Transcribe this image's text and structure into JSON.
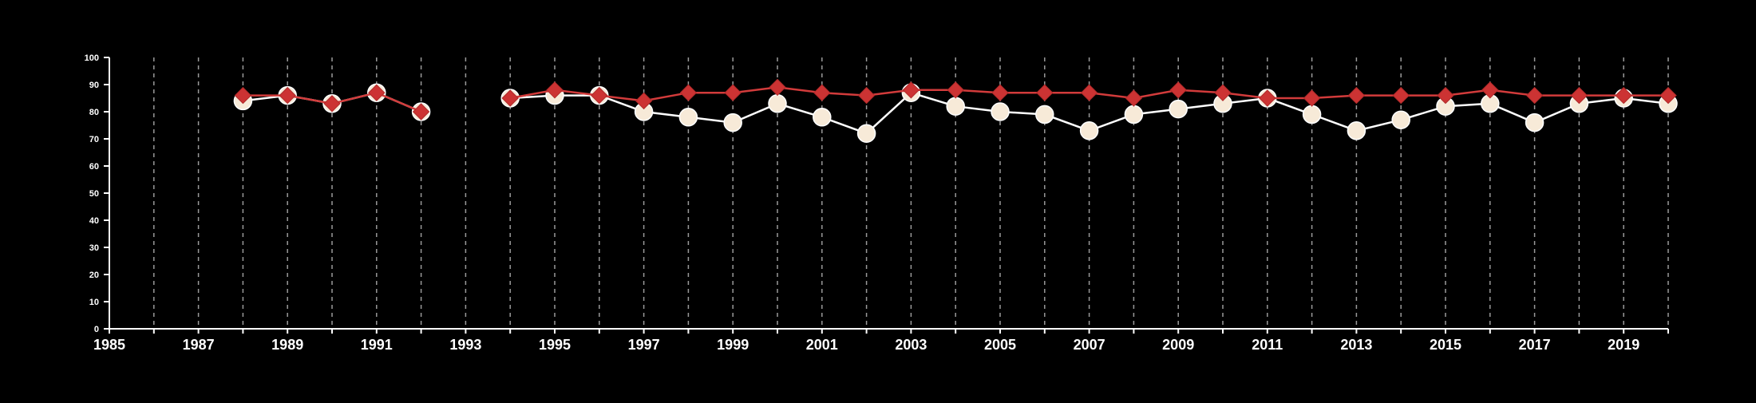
{
  "chart_data": {
    "type": "line",
    "title": "",
    "xlabel": "",
    "ylabel": "",
    "xlim": [
      1985,
      2020
    ],
    "ylim": [
      0,
      100
    ],
    "x_ticks": [
      1985,
      1987,
      1989,
      1991,
      1993,
      1995,
      1997,
      1999,
      2001,
      2003,
      2005,
      2007,
      2009,
      2011,
      2013,
      2015,
      2017,
      2019
    ],
    "y_ticks": [
      0,
      10,
      20,
      30,
      40,
      50,
      60,
      70,
      80,
      90,
      100
    ],
    "grid": "vertical dashed lines at every year",
    "legend": "none",
    "background": "#000000",
    "series": [
      {
        "marker": "circle",
        "color": "#ffffff",
        "marker_fill": "#f7ead8",
        "points": [
          [
            1988,
            84
          ],
          [
            1989,
            86
          ],
          [
            1990,
            83
          ],
          [
            1991,
            87
          ],
          [
            1992,
            80
          ],
          [
            1994,
            85
          ],
          [
            1995,
            86
          ],
          [
            1996,
            86
          ],
          [
            1997,
            80
          ],
          [
            1998,
            78
          ],
          [
            1999,
            76
          ],
          [
            2000,
            83
          ],
          [
            2001,
            78
          ],
          [
            2002,
            72
          ],
          [
            2003,
            87
          ],
          [
            2004,
            82
          ],
          [
            2005,
            80
          ],
          [
            2006,
            79
          ],
          [
            2007,
            73
          ],
          [
            2008,
            79
          ],
          [
            2009,
            81
          ],
          [
            2010,
            83
          ],
          [
            2011,
            85
          ],
          [
            2012,
            79
          ],
          [
            2013,
            73
          ],
          [
            2014,
            77
          ],
          [
            2015,
            82
          ],
          [
            2016,
            83
          ],
          [
            2017,
            76
          ],
          [
            2018,
            83
          ],
          [
            2019,
            85
          ],
          [
            2020,
            83
          ]
        ]
      },
      {
        "marker": "diamond",
        "color": "#d23b3b",
        "marker_fill": "#cc3333",
        "points": [
          [
            1988,
            86
          ],
          [
            1989,
            86
          ],
          [
            1990,
            83
          ],
          [
            1991,
            87
          ],
          [
            1992,
            80
          ],
          [
            1994,
            85
          ],
          [
            1995,
            88
          ],
          [
            1996,
            86
          ],
          [
            1997,
            84
          ],
          [
            1998,
            87
          ],
          [
            1999,
            87
          ],
          [
            2000,
            89
          ],
          [
            2001,
            87
          ],
          [
            2002,
            86
          ],
          [
            2003,
            88
          ],
          [
            2004,
            88
          ],
          [
            2005,
            87
          ],
          [
            2006,
            87
          ],
          [
            2007,
            87
          ],
          [
            2008,
            85
          ],
          [
            2009,
            88
          ],
          [
            2010,
            87
          ],
          [
            2011,
            85
          ],
          [
            2012,
            85
          ],
          [
            2013,
            86
          ],
          [
            2014,
            86
          ],
          [
            2015,
            86
          ],
          [
            2016,
            88
          ],
          [
            2017,
            86
          ],
          [
            2018,
            86
          ],
          [
            2019,
            86
          ],
          [
            2020,
            86
          ]
        ]
      }
    ]
  }
}
